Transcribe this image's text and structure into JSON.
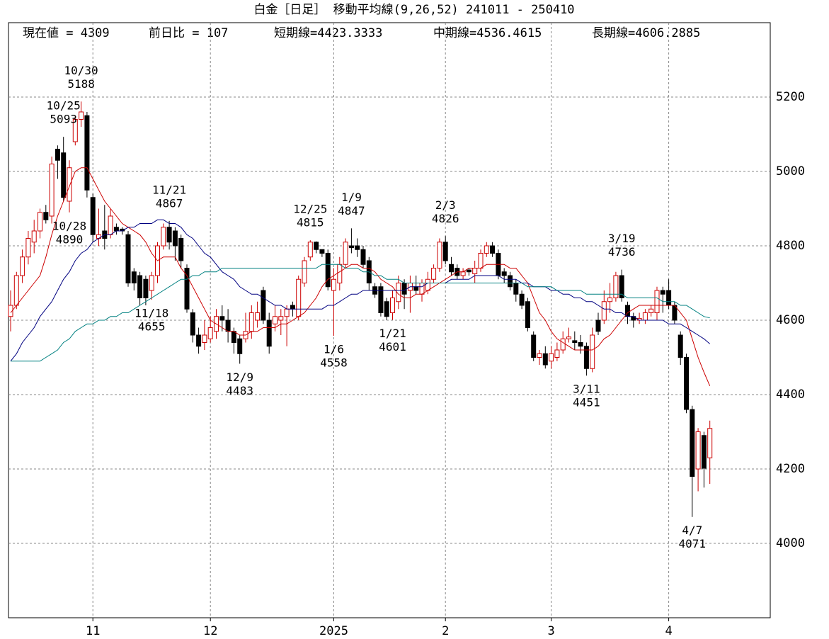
{
  "chart_data": {
    "type": "candlestick",
    "title": "白金［日足］ 移動平均線(9,26,52)  241011 - 250410",
    "stats": [
      "現在値 = 4309",
      "前日比 = 107",
      "短期線=4423.3333",
      "中期線=4536.4615",
      "長期線=4606.2885"
    ],
    "categories": [
      null,
      null,
      null,
      null,
      null,
      null,
      null,
      null,
      null,
      null,
      null,
      null,
      null,
      null,
      "11",
      null,
      null,
      null,
      null,
      null,
      null,
      null,
      null,
      null,
      null,
      null,
      null,
      null,
      null,
      null,
      null,
      null,
      null,
      null,
      "12",
      null,
      null,
      null,
      null,
      null,
      null,
      null,
      null,
      null,
      null,
      null,
      null,
      null,
      null,
      null,
      null,
      null,
      null,
      null,
      null,
      "2025",
      null,
      null,
      null,
      null,
      null,
      null,
      null,
      null,
      null,
      null,
      null,
      null,
      null,
      null,
      null,
      null,
      null,
      null,
      "2",
      null,
      null,
      null,
      null,
      null,
      null,
      null,
      null,
      null,
      null,
      null,
      null,
      null,
      null,
      null,
      null,
      null,
      "3",
      null,
      null,
      null,
      null,
      null,
      null,
      null,
      null,
      null,
      null,
      null,
      null,
      null,
      null,
      null,
      null,
      null,
      null,
      null,
      "4",
      null,
      null,
      null,
      null,
      null,
      null,
      null
    ],
    "open": [
      4610,
      4640,
      4720,
      4770,
      4810,
      4840,
      4890,
      4880,
      5060,
      5050,
      4920,
      5080,
      5140,
      5150,
      4930,
      4820,
      4840,
      4830,
      4850,
      4845,
      4830,
      4730,
      4720,
      4710,
      4680,
      4720,
      4800,
      4850,
      4840,
      4820,
      4740,
      4620,
      4560,
      4540,
      4550,
      4570,
      4610,
      4600,
      4570,
      4550,
      4550,
      4570,
      4600,
      4680,
      4600,
      4590,
      4600,
      4610,
      4640,
      4610,
      4700,
      4770,
      4810,
      4790,
      4780,
      4680,
      4700,
      4750,
      4800,
      4800,
      4790,
      4760,
      4690,
      4690,
      4650,
      4620,
      4650,
      4700,
      4680,
      4690,
      4670,
      4680,
      4710,
      4740,
      4810,
      4750,
      4740,
      4720,
      4735,
      4725,
      4740,
      4780,
      4800,
      4780,
      4730,
      4720,
      4700,
      4670,
      4650,
      4560,
      4500,
      4510,
      4490,
      4500,
      4520,
      4550,
      4545,
      4540,
      4530,
      4470,
      4600,
      4600,
      4650,
      4660,
      4720,
      4640,
      4610,
      4600,
      4600,
      4620,
      4620,
      4680,
      4680,
      4640,
      4560,
      4500,
      4360,
      4200,
      4290,
      4230
    ],
    "high": [
      4680,
      4730,
      4790,
      4840,
      4870,
      4900,
      4910,
      5040,
      5070,
      5093,
      5030,
      5150,
      5188,
      5160,
      4940,
      4900,
      4910,
      4900,
      4860,
      4850,
      4840,
      4740,
      4730,
      4720,
      4730,
      4810,
      4860,
      4867,
      4850,
      4830,
      4750,
      4630,
      4580,
      4600,
      4610,
      4630,
      4640,
      4630,
      4580,
      4560,
      4620,
      4640,
      4650,
      4690,
      4620,
      4640,
      4630,
      4640,
      4650,
      4720,
      4770,
      4815,
      4812,
      4790,
      4790,
      4740,
      4770,
      4820,
      4847,
      4820,
      4800,
      4770,
      4700,
      4700,
      4660,
      4680,
      4720,
      4710,
      4720,
      4720,
      4710,
      4730,
      4750,
      4820,
      4826,
      4770,
      4750,
      4740,
      4740,
      4760,
      4790,
      4810,
      4810,
      4790,
      4740,
      4730,
      4710,
      4680,
      4660,
      4570,
      4520,
      4530,
      4530,
      4540,
      4570,
      4580,
      4570,
      4560,
      4540,
      4580,
      4620,
      4680,
      4700,
      4730,
      4736,
      4650,
      4620,
      4620,
      4630,
      4640,
      4690,
      4690,
      4710,
      4650,
      4570,
      4510,
      4370,
      4310,
      4300,
      4330
    ],
    "low": [
      4570,
      4630,
      4700,
      4750,
      4780,
      4820,
      4860,
      4860,
      4980,
      4920,
      4890,
      5070,
      5120,
      4930,
      4810,
      4800,
      4790,
      4820,
      4830,
      4830,
      4690,
      4680,
      4640,
      4640,
      4655,
      4700,
      4790,
      4790,
      4760,
      4740,
      4620,
      4540,
      4510,
      4520,
      4540,
      4550,
      4570,
      4540,
      4510,
      4483,
      4540,
      4550,
      4580,
      4590,
      4510,
      4570,
      4560,
      4530,
      4610,
      4600,
      4690,
      4760,
      4780,
      4770,
      4680,
      4558,
      4680,
      4740,
      4780,
      4770,
      4740,
      4680,
      4660,
      4610,
      4600,
      4601,
      4630,
      4630,
      4620,
      4670,
      4650,
      4670,
      4700,
      4730,
      4750,
      4720,
      4710,
      4710,
      4720,
      4700,
      4730,
      4770,
      4770,
      4710,
      4700,
      4680,
      4650,
      4630,
      4570,
      4490,
      4480,
      4470,
      4470,
      4490,
      4510,
      4540,
      4520,
      4510,
      4451,
      4460,
      4560,
      4590,
      4620,
      4650,
      4650,
      4590,
      4580,
      4590,
      4590,
      4610,
      4600,
      4620,
      4630,
      4590,
      4480,
      4350,
      4071,
      4140,
      4150,
      4160
    ],
    "close": [
      4640,
      4720,
      4770,
      4820,
      4840,
      4890,
      4870,
      5020,
      5030,
      4930,
      5010,
      5140,
      5160,
      4950,
      4830,
      4830,
      4820,
      4880,
      4840,
      4840,
      4700,
      4700,
      4660,
      4660,
      4720,
      4800,
      4850,
      4810,
      4800,
      4760,
      4630,
      4560,
      4530,
      4560,
      4580,
      4610,
      4600,
      4570,
      4540,
      4510,
      4570,
      4620,
      4620,
      4600,
      4530,
      4610,
      4610,
      4630,
      4630,
      4710,
      4760,
      4810,
      4790,
      4780,
      4690,
      4710,
      4750,
      4810,
      4795,
      4790,
      4750,
      4700,
      4670,
      4620,
      4610,
      4660,
      4700,
      4670,
      4700,
      4680,
      4700,
      4710,
      4740,
      4810,
      4760,
      4730,
      4720,
      4730,
      4730,
      4740,
      4780,
      4800,
      4780,
      4720,
      4720,
      4690,
      4670,
      4640,
      4580,
      4500,
      4510,
      4480,
      4510,
      4520,
      4550,
      4555,
      4540,
      4530,
      4470,
      4560,
      4570,
      4650,
      4660,
      4720,
      4660,
      4610,
      4600,
      4605,
      4620,
      4630,
      4680,
      4670,
      4640,
      4600,
      4500,
      4360,
      4180,
      4300,
      4202,
      4309
    ],
    "up_color": "#cc0000",
    "down_color": "#000000",
    "moving_averages": [
      {
        "color": "#cc0000",
        "values": [
          4620,
          4640,
          4660,
          4680,
          4700,
          4720,
          4770,
          4830,
          4880,
          4920,
          4960,
          5000,
          5010,
          5010,
          4980,
          4950,
          4920,
          4900,
          4880,
          4860,
          4850,
          4840,
          4830,
          4810,
          4780,
          4760,
          4770,
          4770,
          4770,
          4740,
          4720,
          4690,
          4660,
          4630,
          4600,
          4590,
          4580,
          4570,
          4570,
          4560,
          4560,
          4570,
          4570,
          4580,
          4580,
          4580,
          4590,
          4590,
          4600,
          4610,
          4620,
          4640,
          4660,
          4690,
          4710,
          4720,
          4730,
          4740,
          4750,
          4750,
          4740,
          4740,
          4730,
          4710,
          4700,
          4690,
          4670,
          4660,
          4660,
          4670,
          4670,
          4680,
          4690,
          4700,
          4710,
          4720,
          4730,
          4730,
          4740,
          4740,
          4740,
          4750,
          4750,
          4750,
          4750,
          4740,
          4740,
          4720,
          4700,
          4660,
          4620,
          4600,
          4570,
          4550,
          4540,
          4530,
          4520,
          4520,
          4520,
          4520,
          4530,
          4550,
          4560,
          4580,
          4600,
          4620,
          4630,
          4640,
          4640,
          4640,
          4640,
          4640,
          4640,
          4640,
          4620,
          4600,
          4550,
          4500,
          4460,
          4423.3333
        ]
      },
      {
        "color": "#000080",
        "values": [
          4490,
          4510,
          4540,
          4560,
          4580,
          4610,
          4630,
          4650,
          4680,
          4710,
          4730,
          4760,
          4780,
          4790,
          4810,
          4820,
          4830,
          4830,
          4840,
          4840,
          4850,
          4850,
          4860,
          4860,
          4860,
          4870,
          4870,
          4860,
          4860,
          4850,
          4830,
          4820,
          4800,
          4780,
          4770,
          4750,
          4730,
          4720,
          4710,
          4690,
          4680,
          4670,
          4670,
          4660,
          4650,
          4640,
          4640,
          4630,
          4630,
          4630,
          4630,
          4630,
          4630,
          4630,
          4640,
          4640,
          4650,
          4660,
          4670,
          4670,
          4680,
          4680,
          4680,
          4680,
          4680,
          4680,
          4680,
          4680,
          4690,
          4690,
          4690,
          4700,
          4700,
          4700,
          4700,
          4710,
          4710,
          4710,
          4710,
          4720,
          4720,
          4720,
          4720,
          4720,
          4710,
          4710,
          4710,
          4700,
          4700,
          4690,
          4690,
          4690,
          4680,
          4680,
          4670,
          4670,
          4660,
          4660,
          4650,
          4650,
          4640,
          4630,
          4630,
          4620,
          4620,
          4610,
          4610,
          4600,
          4600,
          4600,
          4600,
          4600,
          4590,
          4590,
          4590,
          4580,
          4570,
          4560,
          4550,
          4536.4615
        ]
      },
      {
        "color": "#008080",
        "values": [
          4490,
          4490,
          4490,
          4490,
          4490,
          4490,
          4500,
          4510,
          4520,
          4540,
          4550,
          4570,
          4580,
          4590,
          4590,
          4600,
          4600,
          4610,
          4610,
          4620,
          4620,
          4630,
          4640,
          4650,
          4660,
          4670,
          4680,
          4690,
          4700,
          4710,
          4710,
          4720,
          4720,
          4730,
          4730,
          4730,
          4740,
          4740,
          4740,
          4740,
          4740,
          4740,
          4740,
          4740,
          4740,
          4740,
          4740,
          4740,
          4740,
          4740,
          4740,
          4740,
          4740,
          4750,
          4750,
          4750,
          4750,
          4740,
          4740,
          4740,
          4730,
          4730,
          4720,
          4720,
          4710,
          4710,
          4710,
          4700,
          4700,
          4700,
          4700,
          4700,
          4700,
          4700,
          4700,
          4700,
          4700,
          4700,
          4700,
          4700,
          4700,
          4700,
          4700,
          4700,
          4700,
          4700,
          4700,
          4700,
          4690,
          4690,
          4690,
          4690,
          4690,
          4680,
          4680,
          4680,
          4680,
          4680,
          4670,
          4670,
          4670,
          4670,
          4670,
          4670,
          4670,
          4660,
          4660,
          4660,
          4660,
          4660,
          4660,
          4650,
          4650,
          4650,
          4640,
          4640,
          4630,
          4620,
          4610,
          4606.2885
        ]
      }
    ],
    "annotations": [
      {
        "date": "10/25",
        "value": 5093
      },
      {
        "date": "10/28",
        "value": 4890
      },
      {
        "date": "10/30",
        "value": 5188
      },
      {
        "date": "11/18",
        "value": 4655
      },
      {
        "date": "11/21",
        "value": 4867
      },
      {
        "date": "12/9",
        "value": 4483
      },
      {
        "date": "12/25",
        "value": 4815
      },
      {
        "date": "1/6",
        "value": 4558
      },
      {
        "date": "1/9",
        "value": 4847
      },
      {
        "date": "1/21",
        "value": 4601
      },
      {
        "date": "2/3",
        "value": 4826
      },
      {
        "date": "3/11",
        "value": 4451
      },
      {
        "date": "3/19",
        "value": 4736
      },
      {
        "date": "4/7",
        "value": 4071
      }
    ],
    "ylim": [
      3800,
      5400
    ],
    "yticks": [
      4000,
      4200,
      4400,
      4600,
      4800,
      5000,
      5200
    ],
    "grid": true
  }
}
